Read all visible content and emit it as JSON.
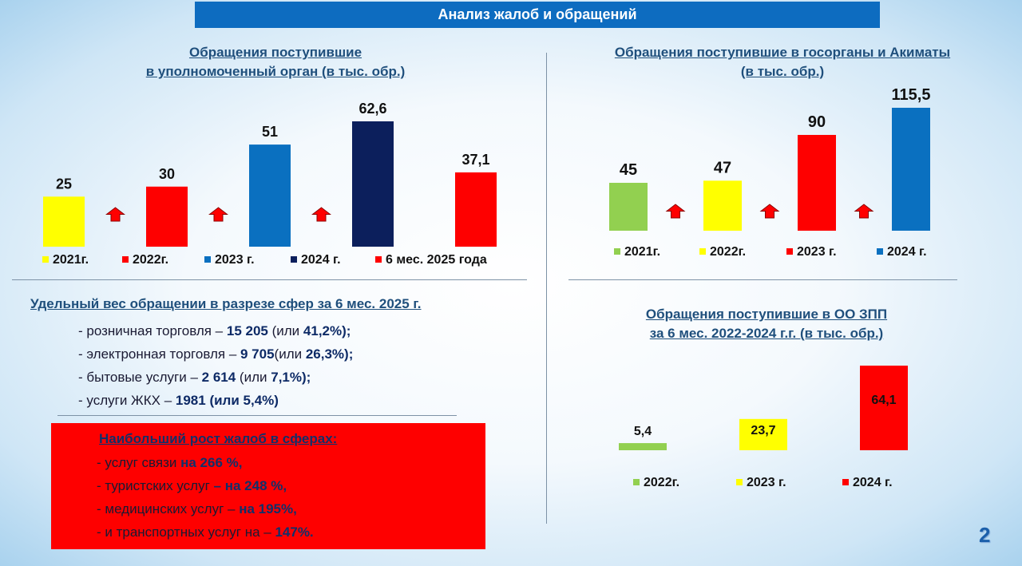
{
  "header": {
    "title": "Анализ жалоб и обращений"
  },
  "page_number": "2",
  "colors": {
    "yellow": "#ffff00",
    "red": "#fe0000",
    "blue": "#0a70c0",
    "navy": "#0c1f5c",
    "green": "#92d050",
    "arrow": "#ff0000",
    "banner": "#0d6cc0"
  },
  "chart_data": [
    {
      "type": "bar",
      "title_line1": "Обращения поступившие",
      "title_line2": "в уполномоченный орган (в тыс. обр.)",
      "categories": [
        "2021г.",
        "2022г.",
        "2023 г.",
        "2024 г.",
        "6 мес. 2025 года"
      ],
      "values": [
        25,
        30,
        51,
        62.6,
        37.1
      ],
      "value_labels": [
        "25",
        "30",
        "51",
        "62,6",
        "37,1"
      ],
      "colors": [
        "#ffff00",
        "#fe0000",
        "#0a70c0",
        "#0c1f5c",
        "#fe0000"
      ],
      "growth_arrows": 3,
      "legend_position": "bottom"
    },
    {
      "type": "bar",
      "title_line1": "Обращения поступившие в госорганы и Акиматы",
      "title_line2": "(в тыс. обр.)",
      "categories": [
        "2021г.",
        "2022г.",
        "2023 г.",
        "2024 г."
      ],
      "values": [
        45,
        47,
        90,
        115.5
      ],
      "value_labels": [
        "45",
        "47",
        "90",
        "115,5"
      ],
      "colors": [
        "#92d050",
        "#ffff00",
        "#fe0000",
        "#0a70c0"
      ],
      "growth_arrows": 3,
      "legend_position": "bottom"
    },
    {
      "type": "bar",
      "title_line1": "Обращения поступившие в ОО ЗПП",
      "title_line2": "за 6 мес. 2022-2024 г.г. (в тыс. обр.)",
      "categories": [
        "2022г.",
        "2023 г.",
        "2024 г."
      ],
      "values": [
        5.4,
        23.7,
        64.1
      ],
      "value_labels": [
        "5,4",
        "23,7",
        "64,1"
      ],
      "colors": [
        "#92d050",
        "#ffff00",
        "#fe0000"
      ],
      "legend_position": "bottom"
    }
  ],
  "shares": {
    "title": "Удельный вес обращении в разрезе сфер за 6 мес. 2025 г.",
    "items": [
      {
        "pre": "- розничная торговля – ",
        "bold": "15 205",
        "post": " (или ",
        "bold2": "41,2%)",
        "tail": ";"
      },
      {
        "pre": "- электронная торговля – ",
        "bold": "9 705",
        "post": "(или ",
        "bold2": "26,3%)",
        "tail": ";"
      },
      {
        "pre": "- бытовые услуги – ",
        "bold": "2 614",
        "post": "  (или ",
        "bold2": "7,1%)",
        "tail": ";"
      },
      {
        "pre": "- услуги ЖКХ – ",
        "bold": "1981",
        "post": " ",
        "bold2": "(или 5,4%)",
        "tail": ""
      }
    ]
  },
  "growth": {
    "title": "Наибольший рост жалоб в сферах:",
    "items": [
      {
        "pre": "- услуг связи ",
        "bold": "на 266 %,"
      },
      {
        "pre": "- туристских услуг ",
        "bold": "– на 248 %,"
      },
      {
        "pre": "- медицинских услуг – ",
        "bold": "на 195%,"
      },
      {
        "pre": "- и транспортных услуг на – ",
        "bold": "147%."
      }
    ]
  }
}
